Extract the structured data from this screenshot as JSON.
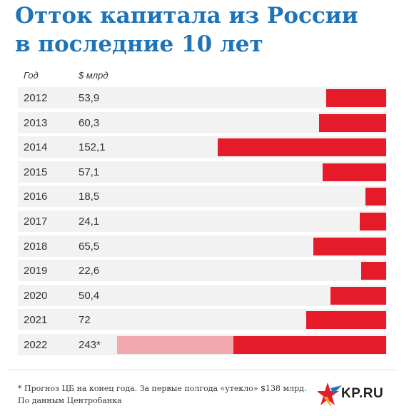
{
  "title_line1": "Отток капитала из России",
  "title_line2": "в последние 10 лет",
  "headers": {
    "year": "Год",
    "value": "$ млрд"
  },
  "chart_data": {
    "type": "bar",
    "orientation": "horizontal",
    "title": "Отток капитала из России в последние 10 лет",
    "categories": [
      "2012",
      "2013",
      "2014",
      "2015",
      "2016",
      "2017",
      "2018",
      "2019",
      "2020",
      "2021",
      "2022"
    ],
    "values": [
      53.9,
      60.3,
      152.1,
      57.1,
      18.5,
      24.1,
      65.5,
      22.6,
      50.4,
      72,
      243
    ],
    "value_labels": [
      "53,9",
      "60,3",
      "152,1",
      "57,1",
      "18,5",
      "24,1",
      "65,5",
      "22,6",
      "50,4",
      "72",
      "243*"
    ],
    "forecast_split_2022": {
      "actual": 138,
      "forecast_total": 243
    },
    "colors": {
      "bar": "#e51b2a",
      "forecast": "#f2a9ae",
      "row_bg": "#f2f2f2",
      "title": "#1f73b7"
    },
    "bar_alignment": "right"
  },
  "footnote": "* Прогноз ЦБ на конец года. За первые полгода «утекло» $138 млрд.",
  "source": "По данным Центробанка",
  "logo": {
    "text": "KP.RU",
    "icon": "kp-star-logo-icon"
  }
}
